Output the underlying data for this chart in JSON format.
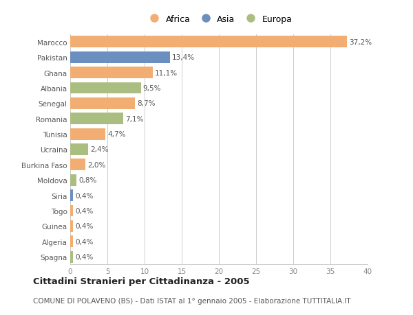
{
  "countries": [
    "Marocco",
    "Pakistan",
    "Ghana",
    "Albania",
    "Senegal",
    "Romania",
    "Tunisia",
    "Ucraina",
    "Burkina Faso",
    "Moldova",
    "Siria",
    "Togo",
    "Guinea",
    "Algeria",
    "Spagna"
  ],
  "values": [
    37.2,
    13.4,
    11.1,
    9.5,
    8.7,
    7.1,
    4.7,
    2.4,
    2.0,
    0.8,
    0.4,
    0.4,
    0.4,
    0.4,
    0.4
  ],
  "labels": [
    "37,2%",
    "13,4%",
    "11,1%",
    "9,5%",
    "8,7%",
    "7,1%",
    "4,7%",
    "2,4%",
    "2,0%",
    "0,8%",
    "0,4%",
    "0,4%",
    "0,4%",
    "0,4%",
    "0,4%"
  ],
  "continents": [
    "Africa",
    "Asia",
    "Africa",
    "Europa",
    "Africa",
    "Europa",
    "Africa",
    "Europa",
    "Africa",
    "Europa",
    "Asia",
    "Africa",
    "Africa",
    "Africa",
    "Europa"
  ],
  "colors": {
    "Africa": "#F2AE72",
    "Asia": "#6B8FBF",
    "Europa": "#ABBE82"
  },
  "xlim": [
    0,
    40
  ],
  "xticks": [
    0,
    5,
    10,
    15,
    20,
    25,
    30,
    35,
    40
  ],
  "title": "Cittadini Stranieri per Cittadinanza - 2005",
  "subtitle": "COMUNE DI POLAVENO (BS) - Dati ISTAT al 1° gennaio 2005 - Elaborazione TUTTITALIA.IT",
  "background_color": "#FFFFFF",
  "grid_color": "#CCCCCC",
  "bar_height": 0.75,
  "label_fontsize": 7.5,
  "ytick_fontsize": 7.5,
  "xtick_fontsize": 7.5,
  "title_fontsize": 9.5,
  "subtitle_fontsize": 7.5,
  "legend_fontsize": 9
}
